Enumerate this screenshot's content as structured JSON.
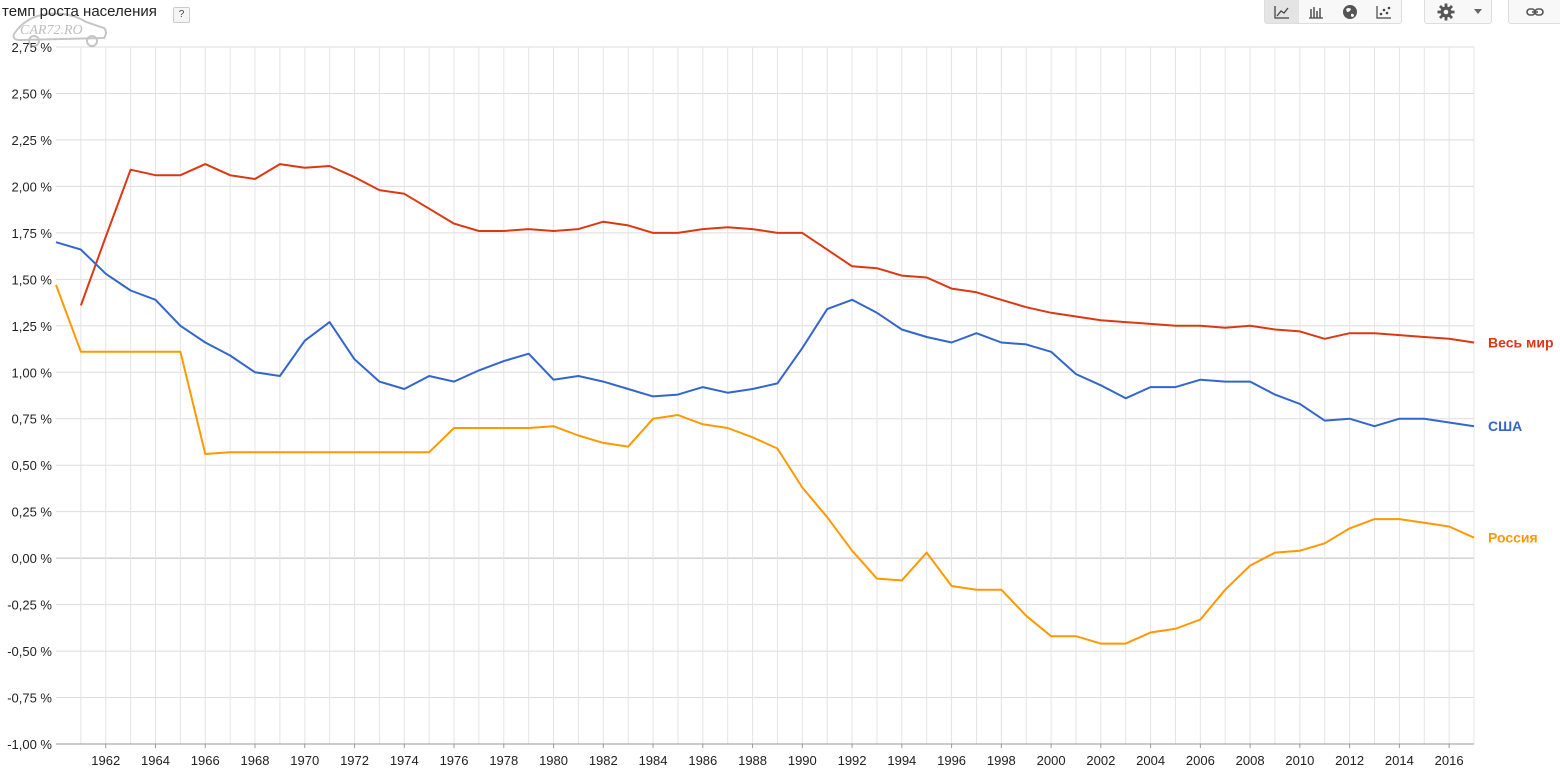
{
  "header": {
    "title": "темп роста населения",
    "help_label": "?",
    "watermark": "CAR72.RO"
  },
  "toolbar": {
    "views": [
      {
        "icon": "line-chart-icon",
        "active": true
      },
      {
        "icon": "bar-chart-icon",
        "active": false
      },
      {
        "icon": "globe-map-icon",
        "active": false
      },
      {
        "icon": "scatter-plot-icon",
        "active": false
      }
    ],
    "settings_icon": "gear-icon",
    "dropdown_icon": "caret-down-icon",
    "link_icon": "link-icon"
  },
  "chart_data": {
    "type": "line",
    "title": "темп роста населения",
    "xlabel": "",
    "ylabel": "",
    "xlim": [
      1960,
      2017
    ],
    "ylim": [
      -1.0,
      2.75
    ],
    "x_ticks": [
      "1962",
      "1964",
      "1966",
      "1968",
      "1970",
      "1972",
      "1974",
      "1976",
      "1978",
      "1980",
      "1982",
      "1984",
      "1986",
      "1988",
      "1990",
      "1992",
      "1994",
      "1996",
      "1998",
      "2000",
      "2002",
      "2004",
      "2006",
      "2008",
      "2010",
      "2012",
      "2014",
      "2016"
    ],
    "y_ticks": [
      "2,75 %",
      "2,50 %",
      "2,25 %",
      "2,00 %",
      "1,75 %",
      "1,50 %",
      "1,25 %",
      "1,00 %",
      "0,75 %",
      "0,50 %",
      "0,25 %",
      "0,00 %",
      "-0,25 %",
      "-0,50 %",
      "-0,75 %",
      "-1,00 %"
    ],
    "grid": true,
    "legend": "right (labels at line ends)",
    "series": [
      {
        "name": "Весь мир",
        "color": "#dc3912",
        "x": [
          1961,
          1962,
          1963,
          1964,
          1965,
          1966,
          1967,
          1968,
          1969,
          1970,
          1971,
          1972,
          1973,
          1974,
          1975,
          1976,
          1977,
          1978,
          1979,
          1980,
          1981,
          1982,
          1983,
          1984,
          1985,
          1986,
          1987,
          1988,
          1989,
          1990,
          1991,
          1992,
          1993,
          1994,
          1995,
          1996,
          1997,
          1998,
          1999,
          2000,
          2001,
          2002,
          2003,
          2004,
          2005,
          2006,
          2007,
          2008,
          2009,
          2010,
          2011,
          2012,
          2013,
          2014,
          2015,
          2016,
          2017
        ],
        "values": [
          1.36,
          1.73,
          2.09,
          2.06,
          2.06,
          2.12,
          2.06,
          2.04,
          2.12,
          2.1,
          2.11,
          2.05,
          1.98,
          1.96,
          1.88,
          1.8,
          1.76,
          1.76,
          1.77,
          1.76,
          1.77,
          1.81,
          1.79,
          1.75,
          1.75,
          1.77,
          1.78,
          1.77,
          1.75,
          1.75,
          1.66,
          1.57,
          1.56,
          1.52,
          1.51,
          1.45,
          1.43,
          1.39,
          1.35,
          1.32,
          1.3,
          1.28,
          1.27,
          1.26,
          1.25,
          1.25,
          1.24,
          1.25,
          1.23,
          1.22,
          1.18,
          1.21,
          1.21,
          1.2,
          1.19,
          1.18,
          1.16
        ]
      },
      {
        "name": "США",
        "color": "#3366cc",
        "x": [
          1960,
          1961,
          1962,
          1963,
          1964,
          1965,
          1966,
          1967,
          1968,
          1969,
          1970,
          1971,
          1972,
          1973,
          1974,
          1975,
          1976,
          1977,
          1978,
          1979,
          1980,
          1981,
          1982,
          1983,
          1984,
          1985,
          1986,
          1987,
          1988,
          1989,
          1990,
          1991,
          1992,
          1993,
          1994,
          1995,
          1996,
          1997,
          1998,
          1999,
          2000,
          2001,
          2002,
          2003,
          2004,
          2005,
          2006,
          2007,
          2008,
          2009,
          2010,
          2011,
          2012,
          2013,
          2014,
          2015,
          2016,
          2017
        ],
        "values": [
          1.7,
          1.66,
          1.53,
          1.44,
          1.39,
          1.25,
          1.16,
          1.09,
          1.0,
          0.98,
          1.17,
          1.27,
          1.07,
          0.95,
          0.91,
          0.98,
          0.95,
          1.01,
          1.06,
          1.1,
          0.96,
          0.98,
          0.95,
          0.91,
          0.87,
          0.88,
          0.92,
          0.89,
          0.91,
          0.94,
          1.13,
          1.34,
          1.39,
          1.32,
          1.23,
          1.19,
          1.16,
          1.21,
          1.16,
          1.15,
          1.11,
          0.99,
          0.93,
          0.86,
          0.92,
          0.92,
          0.96,
          0.95,
          0.95,
          0.88,
          0.83,
          0.74,
          0.75,
          0.71,
          0.75,
          0.75,
          0.73,
          0.71
        ]
      },
      {
        "name": "Россия",
        "color": "#ff9900",
        "x": [
          1960,
          1961,
          1962,
          1963,
          1964,
          1965,
          1966,
          1967,
          1968,
          1969,
          1970,
          1971,
          1972,
          1973,
          1974,
          1975,
          1976,
          1977,
          1978,
          1979,
          1980,
          1981,
          1982,
          1983,
          1984,
          1985,
          1986,
          1987,
          1988,
          1989,
          1990,
          1991,
          1992,
          1993,
          1994,
          1995,
          1996,
          1997,
          1998,
          1999,
          2000,
          2001,
          2002,
          2003,
          2004,
          2005,
          2006,
          2007,
          2008,
          2009,
          2010,
          2011,
          2012,
          2013,
          2014,
          2015,
          2016,
          2017
        ],
        "values": [
          1.47,
          1.11,
          1.11,
          1.11,
          1.11,
          1.11,
          0.56,
          0.57,
          0.57,
          0.57,
          0.57,
          0.57,
          0.57,
          0.57,
          0.57,
          0.57,
          0.7,
          0.7,
          0.7,
          0.7,
          0.71,
          0.66,
          0.62,
          0.6,
          0.75,
          0.77,
          0.72,
          0.7,
          0.65,
          0.59,
          0.38,
          0.22,
          0.04,
          -0.11,
          -0.12,
          0.03,
          -0.15,
          -0.17,
          -0.17,
          -0.31,
          -0.42,
          -0.42,
          -0.46,
          -0.46,
          -0.4,
          -0.38,
          -0.33,
          -0.17,
          -0.04,
          0.03,
          0.04,
          0.08,
          0.16,
          0.21,
          0.21,
          0.19,
          0.17,
          0.11
        ]
      }
    ]
  }
}
